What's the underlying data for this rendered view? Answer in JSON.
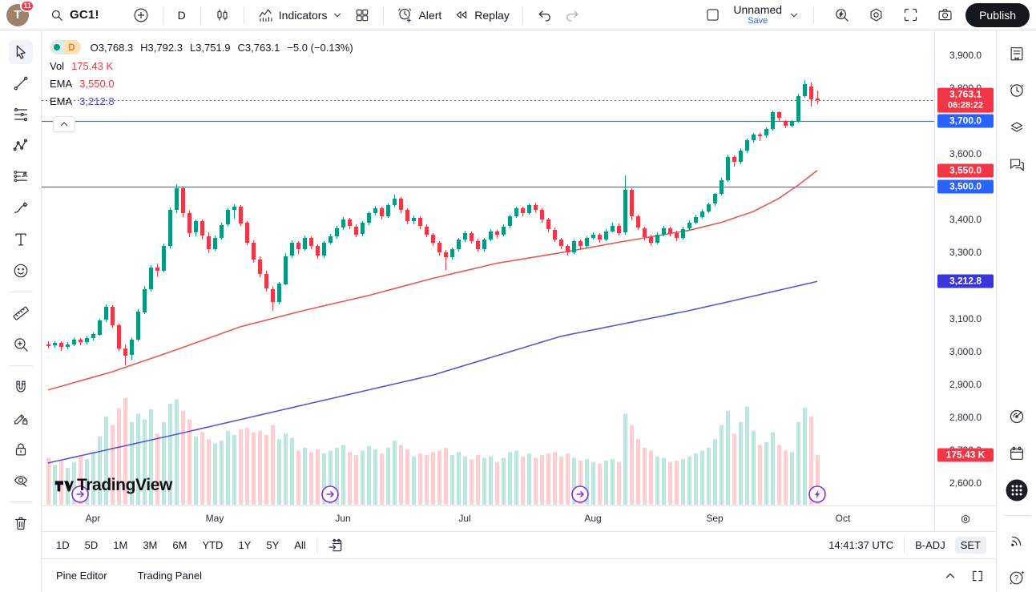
{
  "topbar": {
    "avatar_initial": "T",
    "notification_count": "11",
    "symbol": "GC1!",
    "interval": "D",
    "indicators_label": "Indicators",
    "alert_label": "Alert",
    "replay_label": "Replay",
    "layout_name": "Unnamed",
    "save_label": "Save",
    "publish_label": "Publish"
  },
  "legend": {
    "interval_badge": "D",
    "ohlc": {
      "open": "O3,768.3",
      "high": "H3,792.3",
      "low": "L3,751.9",
      "close": "C3,763.1",
      "change": "−5.0 (−0.13%)"
    },
    "volume": {
      "label": "Vol",
      "value": "175.43 K"
    },
    "ema_fast": {
      "label": "EMA",
      "value": "3,550.0"
    },
    "ema_slow": {
      "label": "EMA",
      "value": "3,212.8"
    }
  },
  "left_toolbar": {
    "tools": [
      {
        "name": "cursor-icon",
        "selected": true
      },
      {
        "name": "trendline-icon",
        "selected": false
      },
      {
        "name": "fib-retracement-icon",
        "selected": false
      },
      {
        "name": "pattern-icon",
        "selected": false
      },
      {
        "name": "projection-icon",
        "selected": false
      },
      {
        "name": "brush-icon",
        "selected": false
      },
      {
        "name": "text-icon",
        "selected": false
      },
      {
        "name": "emoji-icon",
        "selected": false
      },
      {
        "name": "divider"
      },
      {
        "name": "ruler-icon",
        "selected": false
      },
      {
        "name": "zoom-in-icon",
        "selected": false
      },
      {
        "name": "divider"
      },
      {
        "name": "magnet-icon",
        "selected": false
      },
      {
        "name": "draw-mode-icon",
        "selected": false
      },
      {
        "name": "lock-icon",
        "selected": false
      },
      {
        "name": "hide-drawings-icon",
        "selected": false
      },
      {
        "name": "divider"
      },
      {
        "name": "trash-icon",
        "selected": false
      }
    ]
  },
  "right_sidebar": {
    "icons": [
      {
        "name": "watchlist-icon"
      },
      {
        "name": "alerts-clock-icon"
      },
      {
        "name": "object-tree-icon"
      },
      {
        "name": "chat-icon"
      },
      {
        "name": "screener-icon",
        "gap": true
      },
      {
        "name": "calendar-icon"
      },
      {
        "name": "apps-grid-icon",
        "filled": true
      },
      {
        "name": "divider"
      },
      {
        "name": "broadcast-icon"
      },
      {
        "name": "help-icon"
      }
    ]
  },
  "price_axis": {
    "ticks": [
      {
        "label": "3,900.0",
        "price": 3900
      },
      {
        "label": "3,800.0",
        "price": 3800
      },
      {
        "label": "3,600.0",
        "price": 3600
      },
      {
        "label": "3,400.0",
        "price": 3400
      },
      {
        "label": "3,300.0",
        "price": 3300
      },
      {
        "label": "3,100.0",
        "price": 3100
      },
      {
        "label": "3,000.0",
        "price": 3000
      },
      {
        "label": "2,900.0",
        "price": 2900
      },
      {
        "label": "2,800.0",
        "price": 2800
      },
      {
        "label": "2,700.0",
        "price": 2700
      },
      {
        "label": "2,600.0",
        "price": 2600
      }
    ],
    "badges": [
      {
        "label": "3,763.1",
        "sub": "06:28:22",
        "price": 3763.1,
        "bg": "#f23645"
      },
      {
        "label": "3,700.0",
        "price": 3700,
        "bg": "#2962ff"
      },
      {
        "label": "3,550.0",
        "price": 3550,
        "bg": "#f23645"
      },
      {
        "label": "3,500.0",
        "price": 3500,
        "bg": "#2962ff"
      },
      {
        "label": "3,212.8",
        "price": 3212.8,
        "bg": "#3a36db"
      },
      {
        "label": "175.43 K",
        "price": 2685,
        "bg": "#f23645"
      }
    ]
  },
  "time_axis": {
    "months": [
      {
        "label": "Apr",
        "index": 7
      },
      {
        "label": "May",
        "index": 26
      },
      {
        "label": "Jun",
        "index": 46
      },
      {
        "label": "Jul",
        "index": 65
      },
      {
        "label": "Aug",
        "index": 85
      },
      {
        "label": "Sep",
        "index": 104
      },
      {
        "label": "Oct",
        "index": 124
      }
    ]
  },
  "bottom_toolbar": {
    "ranges": [
      "1D",
      "5D",
      "1M",
      "3M",
      "6M",
      "YTD",
      "1Y",
      "5Y",
      "All"
    ],
    "clock": "14:41:37 UTC",
    "adjustment": "B-ADJ",
    "session": "SET"
  },
  "bottom_panel": {
    "items": [
      "Pine Editor",
      "Trading Panel"
    ]
  },
  "watermark": {
    "brand": "TradingView"
  },
  "chart_data": {
    "type": "candlestick",
    "symbol": "GC1!",
    "interval": "D",
    "price_range": [
      2600,
      3900
    ],
    "up_color": "#089981",
    "down_color": "#f23645",
    "vol_up_color": "rgba(8,153,129,0.25)",
    "vol_down_color": "rgba(242,54,69,0.24)",
    "volume_max_k": 380,
    "hlines": [
      {
        "price": 3700,
        "color": "#4d74b5"
      },
      {
        "price": 3500,
        "color": "#4d74b5"
      }
    ],
    "price_line": {
      "price": 3763.1,
      "color": "#f23645",
      "style": "dotted"
    },
    "ema_fast": {
      "period_hint": "fast",
      "last": 3550.0,
      "color": "#e65a50",
      "points": [
        [
          0,
          2883
        ],
        [
          10,
          2938
        ],
        [
          20,
          3005
        ],
        [
          30,
          3075
        ],
        [
          40,
          3125
        ],
        [
          50,
          3170
        ],
        [
          60,
          3222
        ],
        [
          70,
          3268
        ],
        [
          80,
          3300
        ],
        [
          90,
          3335
        ],
        [
          100,
          3368
        ],
        [
          105,
          3392
        ],
        [
          110,
          3425
        ],
        [
          114,
          3465
        ],
        [
          117,
          3505
        ],
        [
          120,
          3550
        ]
      ]
    },
    "ema_slow": {
      "period_hint": "slow",
      "last": 3212.8,
      "color": "#5a55d2",
      "points": [
        [
          0,
          2661
        ],
        [
          20,
          2748
        ],
        [
          40,
          2838
        ],
        [
          60,
          2928
        ],
        [
          80,
          3046
        ],
        [
          100,
          3124
        ],
        [
          110,
          3168
        ],
        [
          120,
          3212.8
        ]
      ]
    },
    "session_markers": {
      "color": "#8c2bd9",
      "items": [
        {
          "index": 5,
          "type": "rollover-arrow"
        },
        {
          "index": 44,
          "type": "rollover-arrow"
        },
        {
          "index": 83,
          "type": "rollover-arrow"
        },
        {
          "index": 120,
          "type": "bolt"
        }
      ]
    },
    "candles": [
      [
        3022,
        3030,
        3008,
        3018,
        165
      ],
      [
        3018,
        3032,
        3012,
        3025,
        140
      ],
      [
        3025,
        3030,
        3002,
        3012,
        155
      ],
      [
        3012,
        3028,
        3006,
        3020,
        130
      ],
      [
        3020,
        3042,
        3016,
        3035,
        150
      ],
      [
        3035,
        3040,
        3018,
        3028,
        170
      ],
      [
        3028,
        3048,
        3022,
        3040,
        160
      ],
      [
        3040,
        3058,
        3034,
        3052,
        185
      ],
      [
        3052,
        3100,
        3048,
        3095,
        240
      ],
      [
        3095,
        3142,
        3088,
        3135,
        310
      ],
      [
        3135,
        3140,
        3072,
        3080,
        280
      ],
      [
        3080,
        3085,
        3002,
        3010,
        340
      ],
      [
        3010,
        3022,
        2958,
        2988,
        375
      ],
      [
        2988,
        3042,
        2975,
        3035,
        290
      ],
      [
        3035,
        3128,
        3030,
        3120,
        320
      ],
      [
        3120,
        3198,
        3112,
        3190,
        300
      ],
      [
        3190,
        3262,
        3182,
        3255,
        335
      ],
      [
        3255,
        3268,
        3228,
        3245,
        250
      ],
      [
        3245,
        3328,
        3240,
        3320,
        290
      ],
      [
        3320,
        3438,
        3315,
        3430,
        355
      ],
      [
        3430,
        3509,
        3422,
        3495,
        370
      ],
      [
        3495,
        3500,
        3408,
        3420,
        330
      ],
      [
        3420,
        3428,
        3348,
        3360,
        300
      ],
      [
        3360,
        3402,
        3352,
        3395,
        240
      ],
      [
        3395,
        3400,
        3338,
        3350,
        255
      ],
      [
        3350,
        3362,
        3298,
        3310,
        230
      ],
      [
        3310,
        3352,
        3305,
        3345,
        215
      ],
      [
        3345,
        3392,
        3340,
        3385,
        225
      ],
      [
        3385,
        3436,
        3380,
        3430,
        260
      ],
      [
        3430,
        3448,
        3405,
        3440,
        245
      ],
      [
        3440,
        3445,
        3382,
        3390,
        265
      ],
      [
        3390,
        3395,
        3322,
        3330,
        270
      ],
      [
        3330,
        3338,
        3270,
        3280,
        255
      ],
      [
        3280,
        3290,
        3226,
        3235,
        260
      ],
      [
        3235,
        3245,
        3182,
        3190,
        245
      ],
      [
        3190,
        3198,
        3123,
        3150,
        280
      ],
      [
        3150,
        3212,
        3145,
        3205,
        230
      ],
      [
        3205,
        3298,
        3200,
        3290,
        250
      ],
      [
        3290,
        3338,
        3285,
        3330,
        235
      ],
      [
        3330,
        3336,
        3298,
        3310,
        190
      ],
      [
        3310,
        3352,
        3305,
        3345,
        200
      ],
      [
        3345,
        3350,
        3312,
        3320,
        185
      ],
      [
        3320,
        3326,
        3282,
        3290,
        195
      ],
      [
        3290,
        3336,
        3286,
        3330,
        180
      ],
      [
        3330,
        3356,
        3324,
        3350,
        190
      ],
      [
        3350,
        3382,
        3344,
        3375,
        200
      ],
      [
        3375,
        3408,
        3370,
        3400,
        210
      ],
      [
        3400,
        3406,
        3372,
        3380,
        185
      ],
      [
        3380,
        3386,
        3346,
        3355,
        175
      ],
      [
        3355,
        3396,
        3350,
        3390,
        190
      ],
      [
        3390,
        3426,
        3385,
        3420,
        205
      ],
      [
        3420,
        3442,
        3412,
        3435,
        195
      ],
      [
        3435,
        3440,
        3402,
        3410,
        180
      ],
      [
        3410,
        3450,
        3405,
        3445,
        200
      ],
      [
        3445,
        3476,
        3438,
        3465,
        225
      ],
      [
        3465,
        3470,
        3422,
        3430,
        210
      ],
      [
        3430,
        3436,
        3388,
        3395,
        195
      ],
      [
        3395,
        3412,
        3385,
        3405,
        170
      ],
      [
        3405,
        3410,
        3372,
        3380,
        180
      ],
      [
        3380,
        3386,
        3346,
        3355,
        175
      ],
      [
        3355,
        3360,
        3322,
        3330,
        185
      ],
      [
        3330,
        3336,
        3292,
        3300,
        190
      ],
      [
        3300,
        3308,
        3248,
        3285,
        200
      ],
      [
        3285,
        3316,
        3280,
        3310,
        175
      ],
      [
        3310,
        3346,
        3305,
        3340,
        185
      ],
      [
        3340,
        3368,
        3335,
        3360,
        170
      ],
      [
        3360,
        3365,
        3328,
        3335,
        160
      ],
      [
        3335,
        3342,
        3302,
        3310,
        175
      ],
      [
        3310,
        3346,
        3305,
        3340,
        165
      ],
      [
        3340,
        3372,
        3336,
        3365,
        170
      ],
      [
        3365,
        3370,
        3346,
        3355,
        150
      ],
      [
        3355,
        3386,
        3350,
        3380,
        165
      ],
      [
        3380,
        3416,
        3375,
        3410,
        185
      ],
      [
        3410,
        3440,
        3405,
        3435,
        190
      ],
      [
        3435,
        3440,
        3412,
        3420,
        170
      ],
      [
        3420,
        3450,
        3415,
        3445,
        180
      ],
      [
        3445,
        3452,
        3422,
        3430,
        165
      ],
      [
        3430,
        3436,
        3392,
        3400,
        175
      ],
      [
        3400,
        3406,
        3362,
        3370,
        180
      ],
      [
        3370,
        3376,
        3332,
        3340,
        185
      ],
      [
        3340,
        3346,
        3312,
        3320,
        170
      ],
      [
        3320,
        3326,
        3292,
        3300,
        180
      ],
      [
        3300,
        3340,
        3296,
        3335,
        165
      ],
      [
        3335,
        3340,
        3312,
        3320,
        155
      ],
      [
        3320,
        3350,
        3315,
        3345,
        160
      ],
      [
        3345,
        3362,
        3340,
        3355,
        150
      ],
      [
        3355,
        3360,
        3332,
        3340,
        145
      ],
      [
        3340,
        3372,
        3336,
        3365,
        155
      ],
      [
        3365,
        3390,
        3360,
        3382,
        160
      ],
      [
        3382,
        3388,
        3352,
        3360,
        150
      ],
      [
        3360,
        3534,
        3355,
        3490,
        320
      ],
      [
        3490,
        3495,
        3398,
        3410,
        280
      ],
      [
        3410,
        3415,
        3368,
        3375,
        230
      ],
      [
        3375,
        3380,
        3338,
        3348,
        200
      ],
      [
        3348,
        3355,
        3322,
        3330,
        190
      ],
      [
        3330,
        3362,
        3325,
        3355,
        170
      ],
      [
        3355,
        3382,
        3350,
        3375,
        165
      ],
      [
        3375,
        3380,
        3352,
        3360,
        150
      ],
      [
        3360,
        3368,
        3336,
        3345,
        155
      ],
      [
        3345,
        3378,
        3340,
        3372,
        160
      ],
      [
        3372,
        3398,
        3368,
        3390,
        170
      ],
      [
        3390,
        3415,
        3385,
        3408,
        180
      ],
      [
        3408,
        3432,
        3402,
        3425,
        190
      ],
      [
        3425,
        3452,
        3420,
        3448,
        200
      ],
      [
        3448,
        3482,
        3442,
        3478,
        230
      ],
      [
        3478,
        3528,
        3474,
        3520,
        280
      ],
      [
        3520,
        3598,
        3515,
        3590,
        330
      ],
      [
        3590,
        3596,
        3562,
        3575,
        250
      ],
      [
        3575,
        3618,
        3570,
        3610,
        290
      ],
      [
        3610,
        3648,
        3605,
        3642,
        345
      ],
      [
        3642,
        3665,
        3636,
        3660,
        260
      ],
      [
        3660,
        3664,
        3640,
        3655,
        210
      ],
      [
        3655,
        3682,
        3650,
        3675,
        220
      ],
      [
        3675,
        3732,
        3670,
        3727,
        255
      ],
      [
        3727,
        3730,
        3702,
        3710,
        210
      ],
      [
        3698,
        3702,
        3678,
        3686,
        190
      ],
      [
        3686,
        3704,
        3682,
        3700,
        185
      ],
      [
        3700,
        3783,
        3696,
        3776,
        290
      ],
      [
        3776,
        3824,
        3770,
        3812,
        340
      ],
      [
        3806,
        3818,
        3745,
        3768.1,
        310
      ],
      [
        3768.3,
        3792.3,
        3751.9,
        3763.1,
        175.43
      ]
    ]
  }
}
